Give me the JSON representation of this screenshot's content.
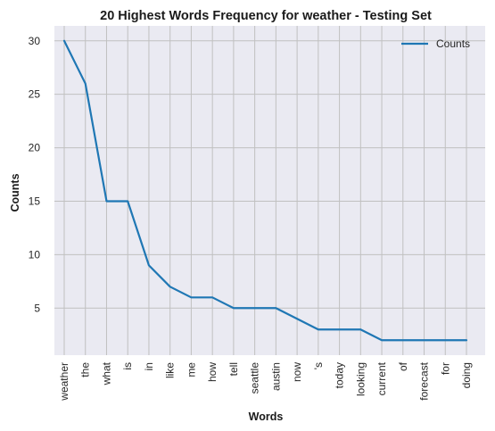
{
  "chart_data": {
    "type": "line",
    "title": "20 Highest Words Frequency for weather - Testing Set",
    "xlabel": "Words",
    "ylabel": "Counts",
    "categories": [
      "weather",
      "the",
      "what",
      "is",
      "in",
      "like",
      "me",
      "how",
      "tell",
      "seattle",
      "austin",
      "now",
      "'s",
      "today",
      "looking",
      "current",
      "of",
      "forecast",
      "for",
      "doing"
    ],
    "series": [
      {
        "name": "Counts",
        "values": [
          30,
          26,
          15,
          15,
          9,
          7,
          6,
          6,
          5,
          5,
          5,
          4,
          3,
          3,
          3,
          2,
          2,
          2,
          2,
          2
        ]
      }
    ],
    "yticks": [
      5,
      10,
      15,
      20,
      25,
      30
    ],
    "ylim": [
      0.6,
      31.4
    ],
    "grid": true,
    "legend_position": "top-right",
    "colors": {
      "line": "#1f77b4",
      "plot_background": "#eaeaf2",
      "grid": "#c0c0c0"
    }
  }
}
